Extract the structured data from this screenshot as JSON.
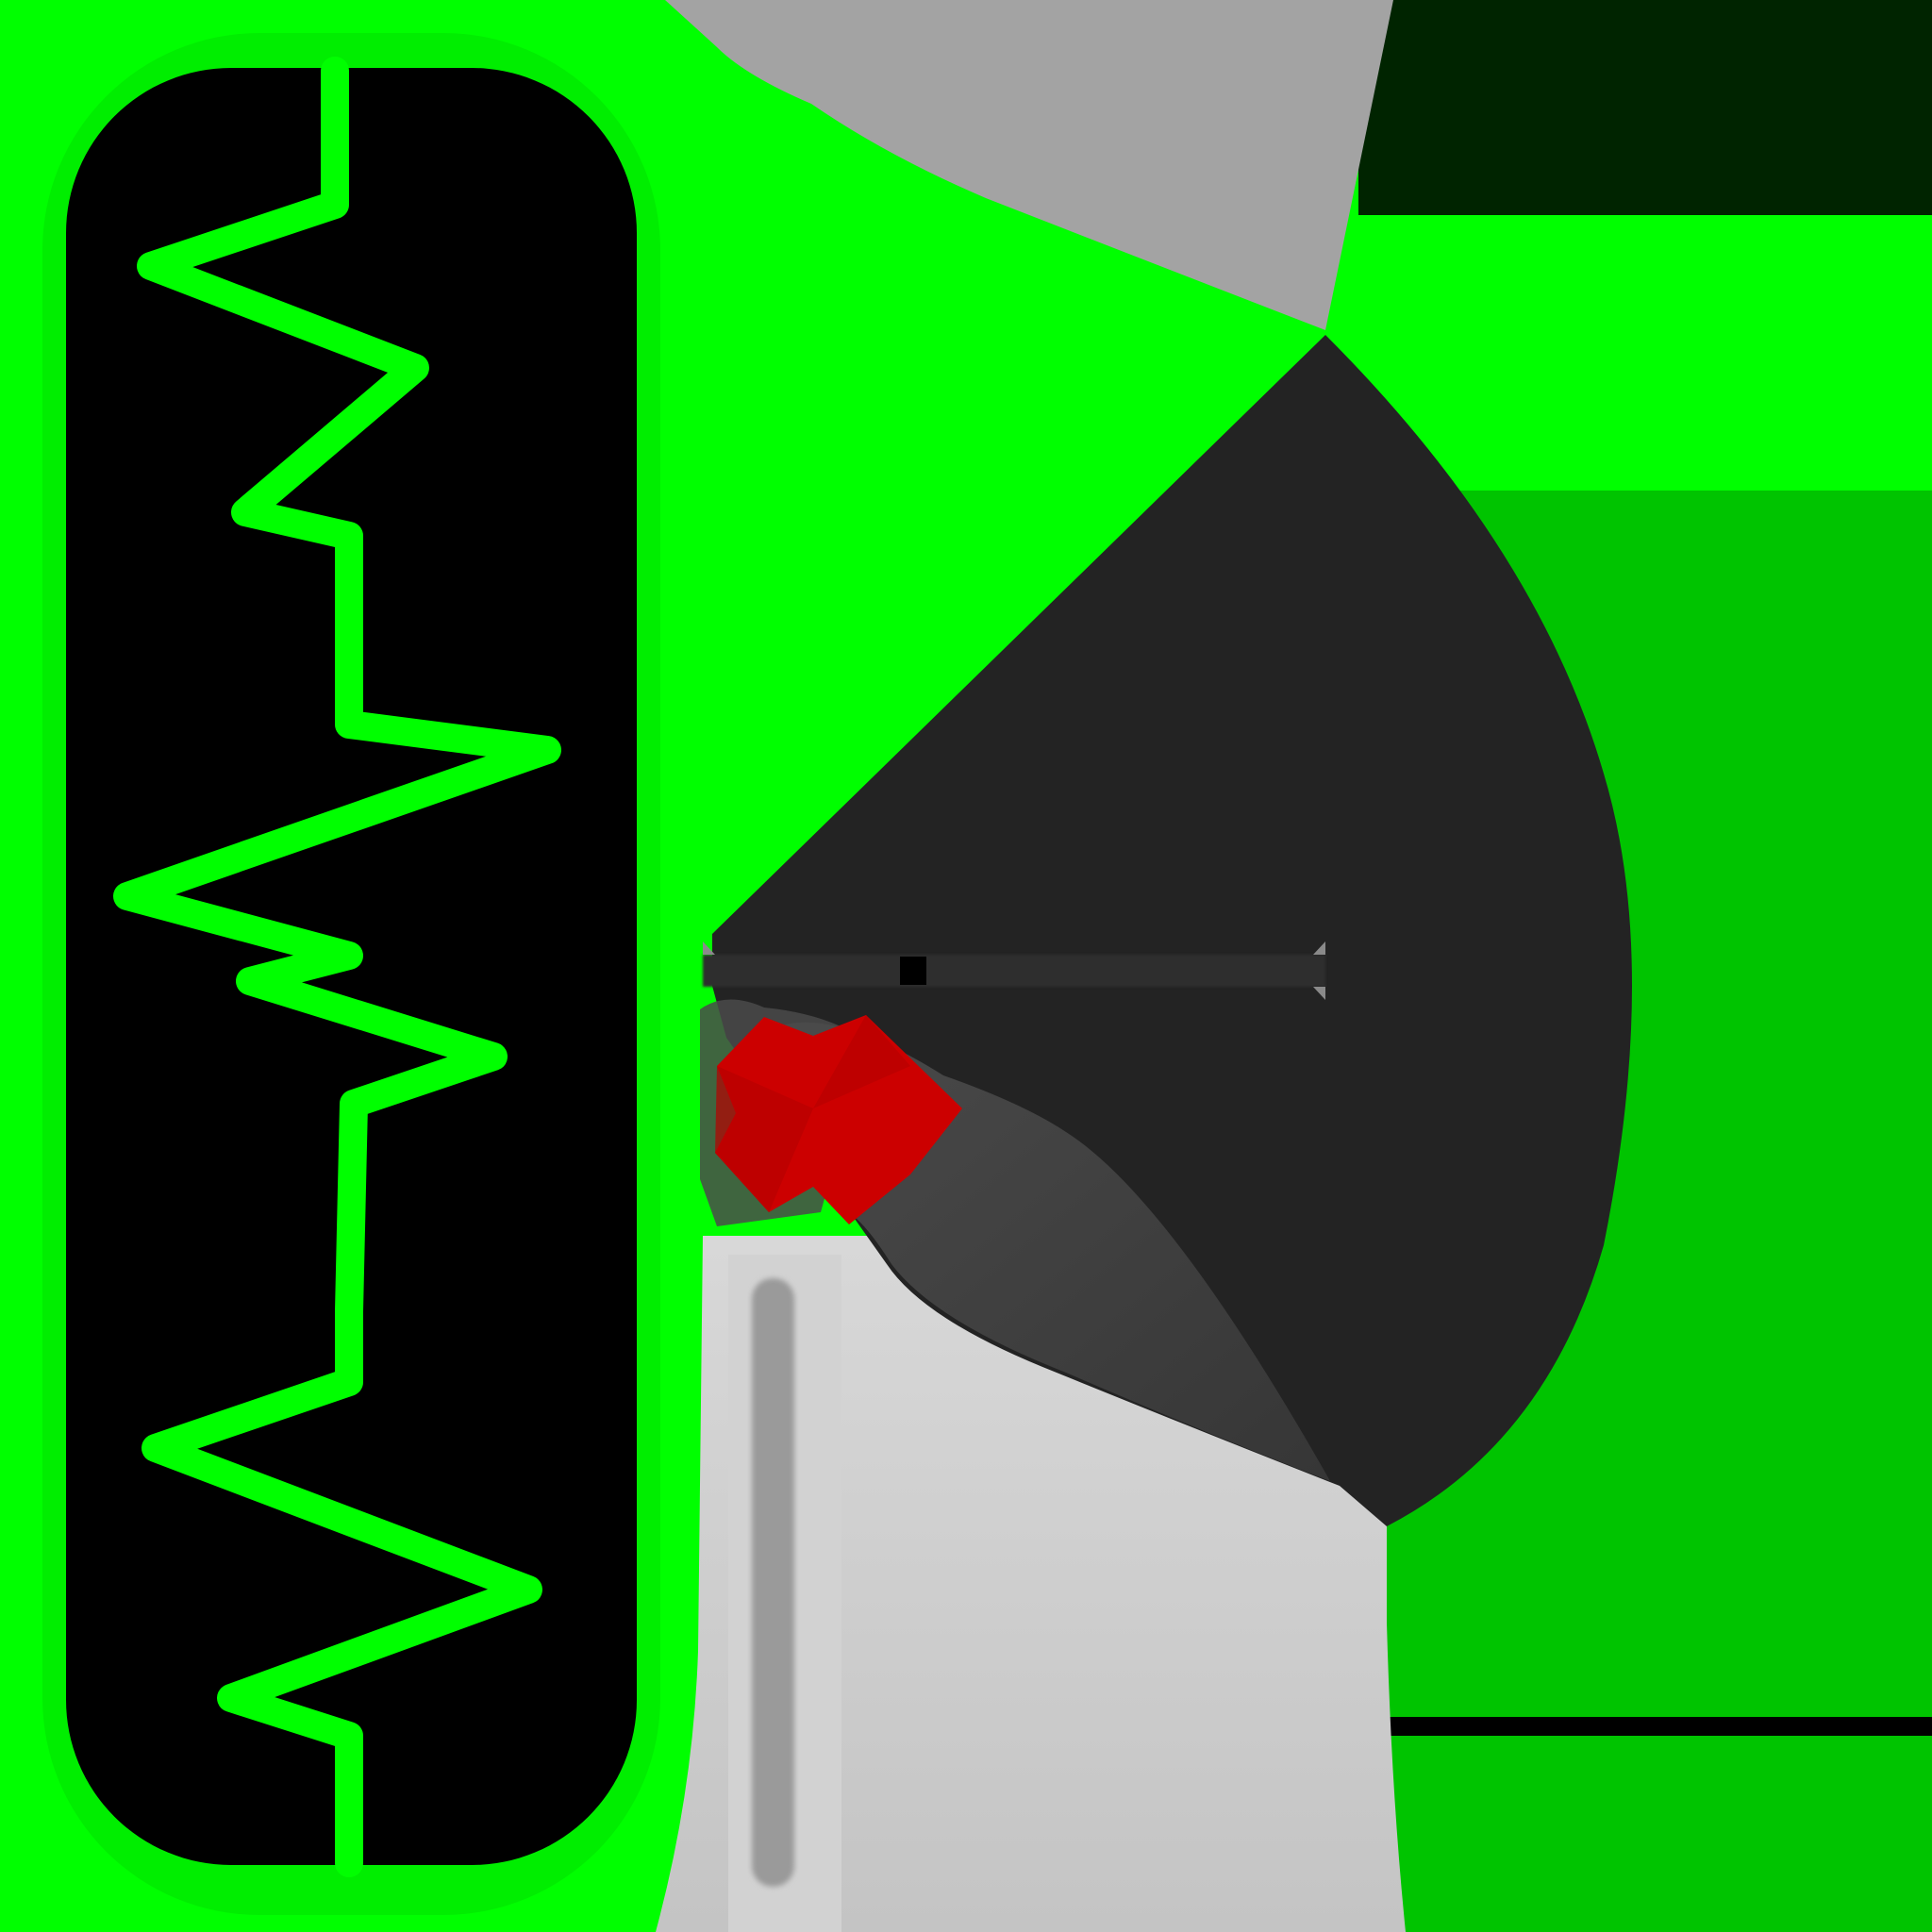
{
  "colors": {
    "bright_green": "#00ff00",
    "mid_green": "#00c400",
    "dark_green": "#002400",
    "screen_black": "#000000",
    "gray_light": "#c8c8c8",
    "gray_mid": "#a3a3a3",
    "cone_dark": "#232323",
    "shadow_gray": "#3c3c3c",
    "slider_gray": "#9a9a9a",
    "cross_red": "#cc0000"
  },
  "icons": {
    "waveform_panel": "zigzag-waveform-icon",
    "emitter_cone": "radar-cone-icon",
    "center_marker": "close-x-icon",
    "slider": "vertical-slider-icon"
  },
  "levels": {
    "horizontal_bar_knob": 0.33
  }
}
